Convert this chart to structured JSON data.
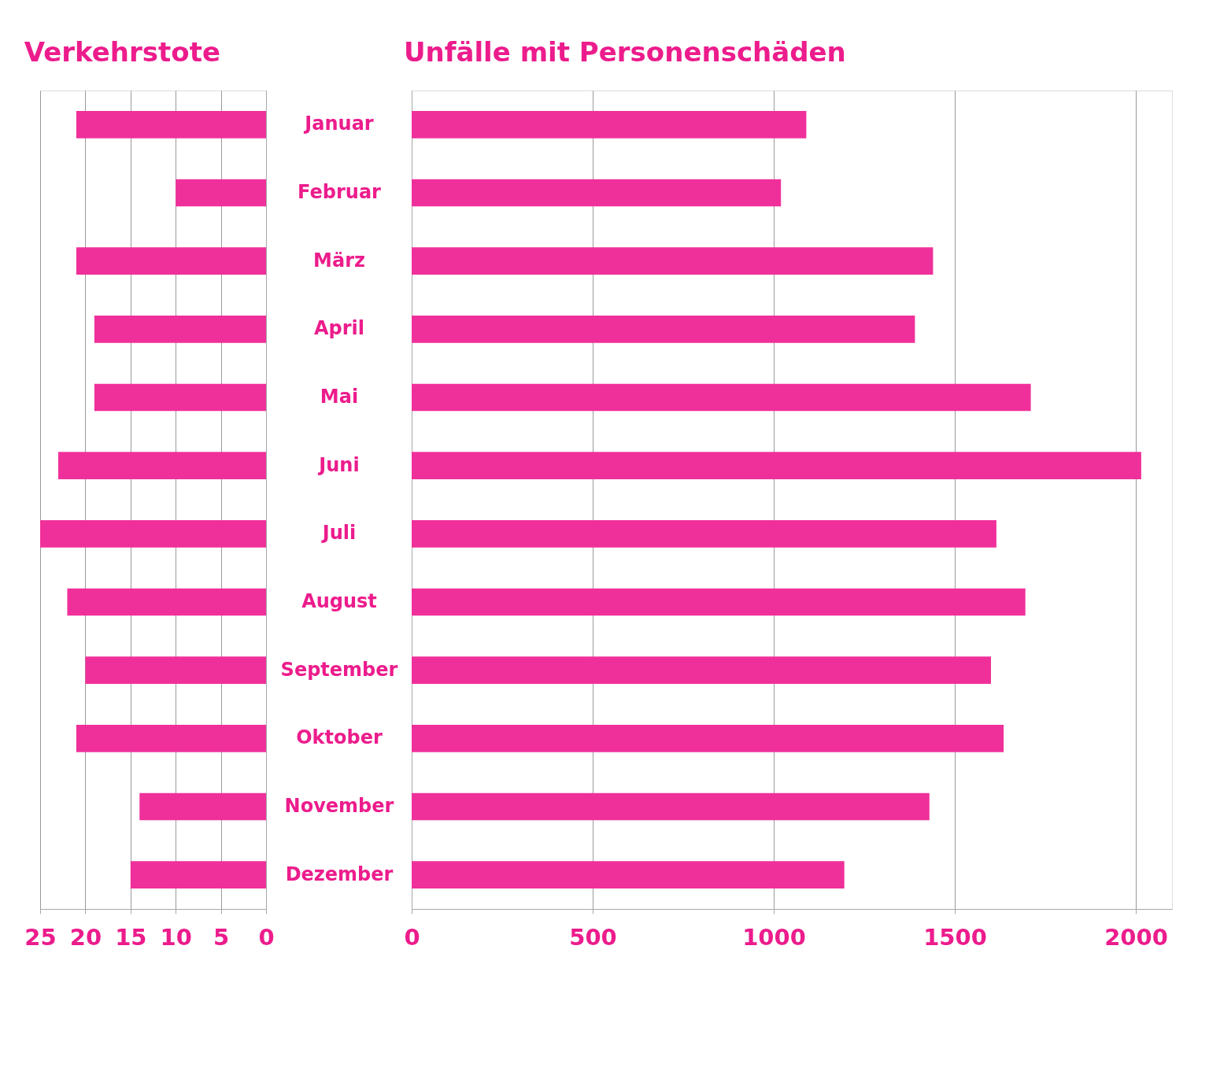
{
  "chart_data": [
    {
      "type": "bar",
      "orientation": "horizontal",
      "title": "Verkehrstote",
      "categories": [
        "Januar",
        "Februar",
        "März",
        "April",
        "Mai",
        "Juni",
        "Juli",
        "August",
        "September",
        "Oktober",
        "November",
        "Dezember"
      ],
      "values": [
        21,
        10,
        21,
        19,
        19,
        23,
        25,
        22,
        20,
        21,
        14,
        15
      ],
      "color": "#f0309a",
      "xlim": [
        25,
        0
      ],
      "xticks": [
        25,
        20,
        15,
        10,
        5,
        0
      ],
      "grid": "x"
    },
    {
      "type": "bar",
      "orientation": "horizontal",
      "title": "Unfälle mit Personenschäden",
      "categories": [
        null,
        null,
        null,
        null,
        null,
        null,
        null,
        null,
        null,
        null,
        null,
        null
      ],
      "values": [
        1090,
        1020,
        1440,
        1390,
        1710,
        2015,
        1615,
        1695,
        1600,
        1635,
        1430,
        1195
      ],
      "color": "#f0309a",
      "xlim": [
        0,
        2100
      ],
      "xticks": [
        0,
        500,
        1000,
        1500,
        2000
      ],
      "grid": "x"
    }
  ]
}
